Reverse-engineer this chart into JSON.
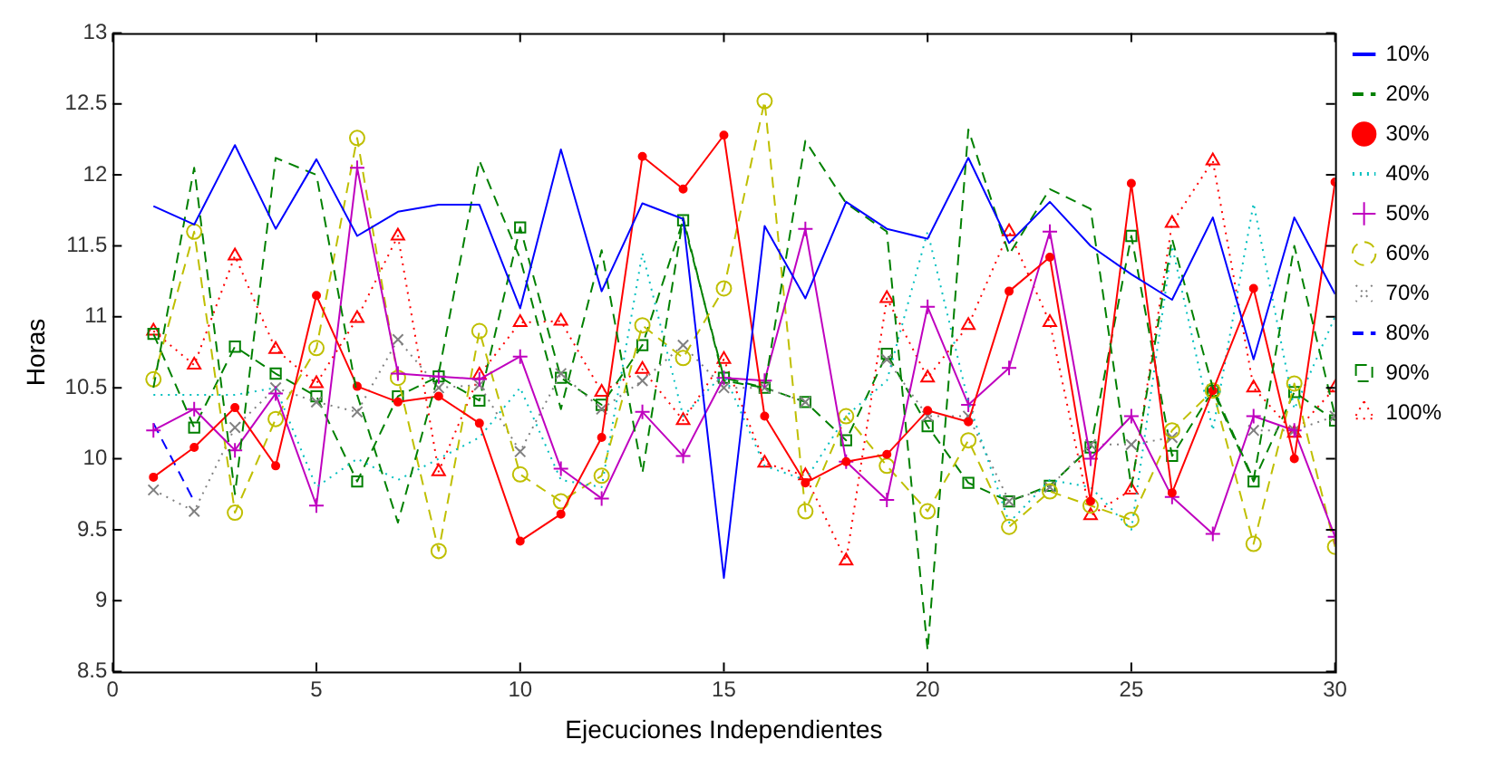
{
  "chart_data": {
    "type": "line",
    "xlabel": "Ejecuciones Independientes",
    "ylabel": "Horas",
    "x": [
      1,
      2,
      3,
      4,
      5,
      6,
      7,
      8,
      9,
      10,
      11,
      12,
      13,
      14,
      15,
      16,
      17,
      18,
      19,
      20,
      21,
      22,
      23,
      24,
      25,
      26,
      27,
      28,
      29,
      30
    ],
    "xlim": [
      0,
      30
    ],
    "xticks": [
      0,
      5,
      10,
      15,
      20,
      25,
      30
    ],
    "ylim": [
      8.5,
      13
    ],
    "yticks": [
      8.5,
      9,
      9.5,
      10,
      10.5,
      11,
      11.5,
      12,
      12.5,
      13
    ],
    "grid": false,
    "legend": "top right",
    "series": [
      {
        "name": "10%",
        "color": "#0000ff",
        "line_style": "solid",
        "marker": "none",
        "values": [
          11.78,
          11.65,
          12.21,
          11.62,
          12.11,
          11.57,
          11.74,
          11.79,
          11.79,
          11.06,
          12.18,
          11.18,
          11.8,
          11.69,
          9.16,
          11.64,
          11.13,
          11.81,
          11.62,
          11.55,
          12.12,
          11.52,
          11.81,
          11.5,
          11.3,
          11.12,
          11.7,
          10.7,
          11.7,
          11.16
        ]
      },
      {
        "name": "20%",
        "color": "#008000",
        "line_style": "dashed",
        "marker": "none",
        "values": [
          10.5,
          12.05,
          9.75,
          12.12,
          12.0,
          10.45,
          9.55,
          10.6,
          12.1,
          11.41,
          10.35,
          11.47,
          9.9,
          11.7,
          10.55,
          10.5,
          12.24,
          11.8,
          11.6,
          8.65,
          12.32,
          11.44,
          11.9,
          11.76,
          9.8,
          11.55,
          10.5,
          9.85,
          11.5,
          10.3
        ]
      },
      {
        "name": "30%",
        "color": "#ff0000",
        "line_style": "solid",
        "marker": "circle",
        "values": [
          9.87,
          10.08,
          10.36,
          9.95,
          11.15,
          10.51,
          10.4,
          10.44,
          10.25,
          9.42,
          9.61,
          10.15,
          12.13,
          11.9,
          12.28,
          10.3,
          9.83,
          9.98,
          10.03,
          10.34,
          10.26,
          11.18,
          11.42,
          9.7,
          11.94,
          9.76,
          10.48,
          11.2,
          10.0,
          11.95
        ]
      },
      {
        "name": "40%",
        "color": "#00bfbf",
        "line_style": "dotted",
        "marker": "none",
        "values": [
          10.45,
          10.45,
          10.45,
          10.5,
          9.8,
          10.0,
          9.85,
          10.0,
          10.15,
          10.5,
          9.85,
          9.8,
          11.45,
          10.3,
          10.6,
          9.95,
          9.85,
          10.3,
          10.55,
          11.6,
          10.4,
          9.55,
          9.85,
          9.8,
          9.5,
          11.5,
          10.2,
          11.8,
          10.35,
          11.0
        ]
      },
      {
        "name": "50%",
        "color": "#bf00bf",
        "line_style": "solid",
        "marker": "cross",
        "values": [
          10.2,
          10.35,
          10.06,
          10.46,
          9.67,
          12.05,
          10.6,
          10.58,
          10.56,
          10.72,
          9.93,
          9.72,
          10.33,
          10.02,
          10.57,
          10.55,
          11.62,
          9.98,
          9.71,
          11.07,
          10.38,
          10.64,
          11.6,
          10.0,
          10.3,
          9.73,
          9.47,
          10.3,
          10.2,
          9.45
        ]
      },
      {
        "name": "60%",
        "color": "#bfbf00",
        "line_style": "dashed",
        "marker": "circle",
        "values": [
          10.56,
          11.6,
          9.62,
          10.28,
          10.78,
          12.26,
          10.57,
          9.35,
          10.9,
          9.89,
          9.7,
          9.88,
          10.94,
          10.71,
          11.2,
          12.52,
          9.63,
          10.3,
          9.95,
          9.63,
          10.13,
          9.52,
          9.77,
          9.67,
          9.57,
          10.2,
          10.48,
          9.4,
          10.53,
          9.38
        ]
      },
      {
        "name": "70%",
        "color": "#808080",
        "line_style": "dotted",
        "marker": "x",
        "values": [
          9.78,
          9.63,
          10.22,
          10.5,
          10.4,
          10.33,
          10.84,
          10.5,
          10.52,
          10.05,
          10.6,
          10.35,
          10.55,
          10.8,
          10.5,
          10.5,
          10.4,
          null,
          10.7,
          10.3,
          10.3,
          9.7,
          9.8,
          10.1,
          10.1,
          10.15,
          null,
          10.2,
          10.2,
          10.3
        ]
      },
      {
        "name": "80%",
        "color": "#0000ff",
        "line_style": "dashed",
        "marker": "none",
        "values": [
          10.25,
          9.7,
          null,
          null,
          null,
          null,
          null,
          null,
          null,
          null,
          null,
          null,
          null,
          null,
          null,
          null,
          null,
          null,
          null,
          null,
          null,
          null,
          null,
          null,
          null,
          null,
          null,
          null,
          null,
          null
        ]
      },
      {
        "name": "90%",
        "color": "#008000",
        "line_style": "dashed",
        "marker": "square",
        "values": [
          10.88,
          10.22,
          10.79,
          10.6,
          10.44,
          9.84,
          10.44,
          10.58,
          10.41,
          11.63,
          10.57,
          10.38,
          10.8,
          11.68,
          10.57,
          10.5,
          10.4,
          10.13,
          10.74,
          10.23,
          9.83,
          9.7,
          9.81,
          10.08,
          11.57,
          10.02,
          10.48,
          9.84,
          10.47,
          10.27
        ]
      },
      {
        "name": "100%",
        "color": "#ff0000",
        "line_style": "dotted",
        "marker": "triangle",
        "values": [
          10.9,
          10.66,
          11.43,
          10.77,
          10.53,
          10.99,
          11.57,
          9.91,
          10.59,
          10.96,
          10.97,
          10.47,
          10.63,
          10.27,
          10.7,
          9.97,
          9.88,
          9.28,
          11.13,
          10.57,
          10.94,
          11.6,
          10.96,
          9.6,
          9.78,
          11.66,
          12.1,
          10.5,
          10.18,
          10.5
        ]
      }
    ]
  }
}
